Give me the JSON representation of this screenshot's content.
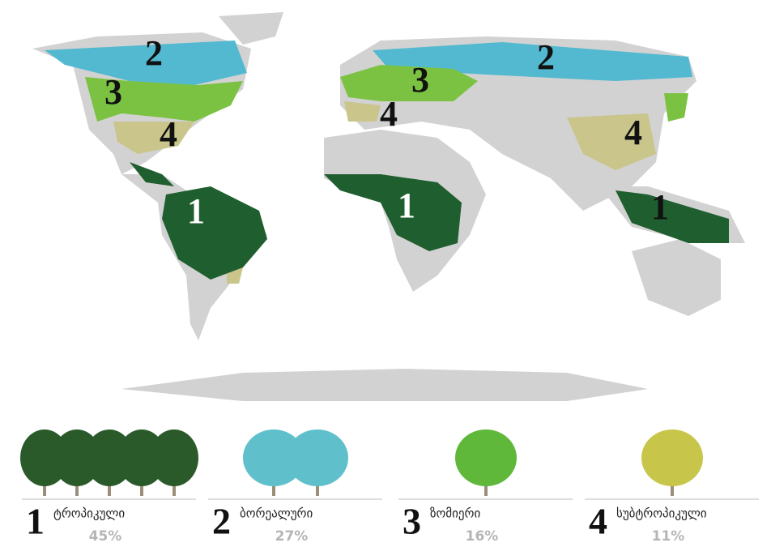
{
  "map_labels": [
    "2",
    "3",
    "4",
    "1",
    "4",
    "3",
    "2",
    "1",
    "4",
    "1"
  ],
  "legend": {
    "items": [
      {
        "number": "1",
        "name": "ტროპიკული",
        "share": "45%"
      },
      {
        "number": "2",
        "name": "ბორეალური",
        "share": "27%"
      },
      {
        "number": "3",
        "name": "ზომიერი",
        "share": "16%"
      },
      {
        "number": "4",
        "name": "სუბტროპიკული",
        "share": "11%"
      }
    ]
  }
}
